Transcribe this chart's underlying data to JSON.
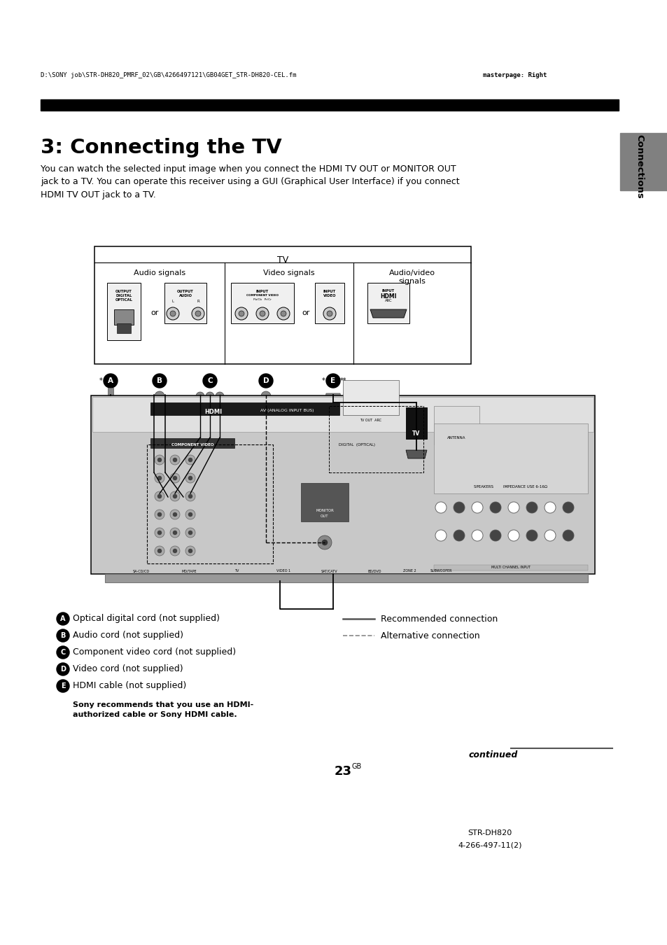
{
  "page_header_left": "D:\\SONY job\\STR-DH820_PMRF_02\\GB\\4266497121\\GB04GET_STR-DH820-CEL.fm",
  "page_header_right": "masterpage: Right",
  "section_title": "3: Connecting the TV",
  "body_text": "You can watch the selected input image when you connect the HDMI TV OUT or MONITOR OUT\njack to a TV. You can operate this receiver using a GUI (Graphical User Interface) if you connect\nHDMI TV OUT jack to a TV.",
  "sidebar_text": "Connections",
  "legend_items": [
    {
      "letter": "A",
      "text": "Optical digital cord (not supplied)"
    },
    {
      "letter": "B",
      "text": "Audio cord (not supplied)"
    },
    {
      "letter": "C",
      "text": "Component video cord (not supplied)"
    },
    {
      "letter": "D",
      "text": "Video cord (not supplied)"
    },
    {
      "letter": "E",
      "text": "HDMI cable (not supplied)"
    }
  ],
  "legend_note": "Sony recommends that you use an HDMI-\nauthorized cable or Sony HDMI cable.",
  "connection_types": [
    {
      "label": "Recommended connection",
      "style": "solid"
    },
    {
      "label": "Alternative connection",
      "style": "dashed"
    }
  ],
  "continued_text": "continued",
  "page_number": "23",
  "page_number_sup": "GB",
  "footer_model": "STR-DH820",
  "footer_code": "4-266-497-11(2)",
  "bg_color": "#ffffff",
  "text_color": "#000000",
  "header_bar_color": "#000000",
  "sidebar_bg": "#808080"
}
